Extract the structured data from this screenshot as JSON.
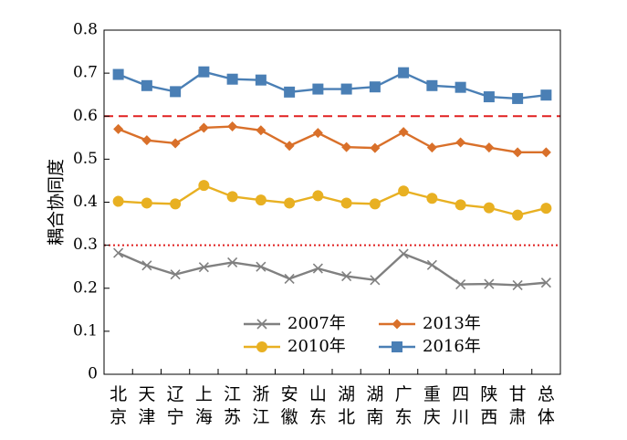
{
  "chart_data": {
    "type": "line",
    "title": "",
    "xlabel": "",
    "ylabel": "耦合协同度",
    "ylim": [
      0,
      0.8
    ],
    "yticks": [
      "0",
      "0.1",
      "0.2",
      "0.3",
      "0.4",
      "0.5",
      "0.6",
      "0.7",
      "0.8"
    ],
    "categories": [
      "北京",
      "天津",
      "辽宁",
      "上海",
      "江苏",
      "浙江",
      "安徽",
      "山东",
      "湖北",
      "湖南",
      "广东",
      "重庆",
      "四川",
      "陕西",
      "甘肃",
      "总体"
    ],
    "category_lines": [
      [
        "北",
        "京"
      ],
      [
        "天",
        "津"
      ],
      [
        "辽",
        "宁"
      ],
      [
        "上",
        "海"
      ],
      [
        "江",
        "苏"
      ],
      [
        "浙",
        "江"
      ],
      [
        "安",
        "徽"
      ],
      [
        "山",
        "东"
      ],
      [
        "湖",
        "北"
      ],
      [
        "湖",
        "南"
      ],
      [
        "广",
        "东"
      ],
      [
        "重",
        "庆"
      ],
      [
        "四",
        "川"
      ],
      [
        "陕",
        "西"
      ],
      [
        "甘",
        "肃"
      ],
      [
        "总",
        "体"
      ]
    ],
    "grid": false,
    "legend_position": "bottom-center",
    "series": [
      {
        "name": "2007年",
        "marker": "x",
        "color": "#808080",
        "values": [
          0.282,
          0.253,
          0.232,
          0.249,
          0.26,
          0.25,
          0.222,
          0.246,
          0.228,
          0.219,
          0.28,
          0.254,
          0.209,
          0.21,
          0.207,
          0.213
        ]
      },
      {
        "name": "2013年",
        "marker": "diamond",
        "color": "#d9702a",
        "values": [
          0.57,
          0.544,
          0.537,
          0.573,
          0.576,
          0.567,
          0.531,
          0.561,
          0.528,
          0.526,
          0.563,
          0.527,
          0.539,
          0.527,
          0.516,
          0.516
        ]
      },
      {
        "name": "2010年",
        "marker": "circle",
        "color": "#e8b022",
        "values": [
          0.402,
          0.398,
          0.396,
          0.439,
          0.413,
          0.405,
          0.398,
          0.415,
          0.398,
          0.396,
          0.426,
          0.409,
          0.394,
          0.387,
          0.37,
          0.386
        ]
      },
      {
        "name": "2016年",
        "marker": "square",
        "color": "#4a7fb5",
        "values": [
          0.697,
          0.671,
          0.657,
          0.703,
          0.686,
          0.684,
          0.656,
          0.663,
          0.663,
          0.668,
          0.701,
          0.671,
          0.667,
          0.645,
          0.641,
          0.649
        ]
      }
    ],
    "reference_lines": [
      {
        "y": 0.6,
        "color": "#e02020",
        "style": "dashed"
      },
      {
        "y": 0.3,
        "color": "#e02020",
        "style": "dotted"
      }
    ]
  }
}
